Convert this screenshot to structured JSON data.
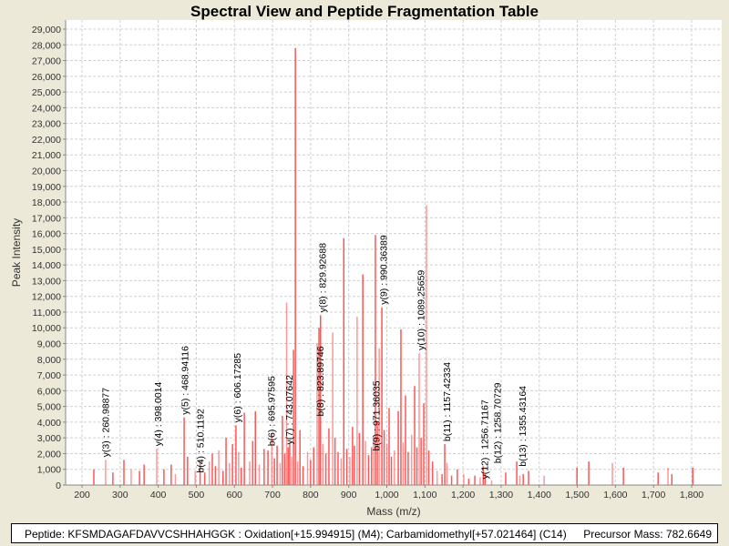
{
  "chart_data": {
    "type": "bar",
    "title": "Spectral View and Peptide Fragmentation Table",
    "xlabel": "Mass (m/z)",
    "ylabel": "Peak Intensity",
    "xlim": [
      150,
      1880
    ],
    "ylim": [
      0,
      29500
    ],
    "xticks": [
      200,
      300,
      400,
      500,
      600,
      700,
      800,
      900,
      1000,
      1100,
      1200,
      1300,
      1400,
      1500,
      1600,
      1700,
      1800
    ],
    "xtick_labels": [
      "200",
      "300",
      "400",
      "500",
      "600",
      "700",
      "800",
      "900",
      "1,000",
      "1,100",
      "1,200",
      "1,300",
      "1,400",
      "1,500",
      "1,600",
      "1,700",
      "1,800"
    ],
    "yticks": [
      0,
      1000,
      2000,
      3000,
      4000,
      5000,
      6000,
      7000,
      8000,
      9000,
      10000,
      11000,
      12000,
      13000,
      14000,
      15000,
      16000,
      17000,
      18000,
      19000,
      20000,
      21000,
      22000,
      23000,
      24000,
      25000,
      26000,
      27000,
      28000,
      29000
    ],
    "ytick_labels": [
      "0",
      "1,000",
      "2,000",
      "3,000",
      "4,000",
      "5,000",
      "6,000",
      "7,000",
      "8,000",
      "9,000",
      "10,000",
      "11,000",
      "12,000",
      "13,000",
      "14,000",
      "15,000",
      "16,000",
      "17,000",
      "18,000",
      "19,000",
      "20,000",
      "21,000",
      "22,000",
      "23,000",
      "24,000",
      "25,000",
      "26,000",
      "27,000",
      "28,000",
      "29,000"
    ],
    "grid": true,
    "peaks": [
      [
        231,
        1000
      ],
      [
        262,
        1600
      ],
      [
        281,
        800
      ],
      [
        310,
        1600
      ],
      [
        329,
        1000
      ],
      [
        351,
        900
      ],
      [
        363,
        1300
      ],
      [
        396,
        2300
      ],
      [
        415,
        1000
      ],
      [
        434,
        1300
      ],
      [
        445,
        700
      ],
      [
        468,
        4300
      ],
      [
        477,
        1800
      ],
      [
        497,
        900
      ],
      [
        510,
        1600
      ],
      [
        522,
        800
      ],
      [
        534,
        1500
      ],
      [
        542,
        2000
      ],
      [
        550,
        1200
      ],
      [
        559,
        2200
      ],
      [
        570,
        900
      ],
      [
        578,
        3000
      ],
      [
        587,
        1400
      ],
      [
        595,
        2600
      ],
      [
        604,
        3800
      ],
      [
        611,
        2100
      ],
      [
        618,
        1100
      ],
      [
        626,
        4600
      ],
      [
        640,
        1500
      ],
      [
        648,
        2800
      ],
      [
        655,
        4700
      ],
      [
        665,
        1300
      ],
      [
        678,
        2300
      ],
      [
        688,
        2200
      ],
      [
        698,
        3300
      ],
      [
        705,
        1700
      ],
      [
        712,
        2500
      ],
      [
        720,
        1400
      ],
      [
        726,
        4400
      ],
      [
        732,
        2000
      ],
      [
        737,
        11600
      ],
      [
        741,
        2400
      ],
      [
        745,
        2700
      ],
      [
        750,
        1800
      ],
      [
        755,
        8600
      ],
      [
        760,
        27800
      ],
      [
        766,
        1500
      ],
      [
        772,
        3500
      ],
      [
        780,
        1200
      ],
      [
        792,
        2100
      ],
      [
        800,
        1600
      ],
      [
        808,
        2400
      ],
      [
        817,
        9000
      ],
      [
        822,
        10000
      ],
      [
        826,
        10800
      ],
      [
        832,
        2600
      ],
      [
        840,
        2000
      ],
      [
        848,
        3600
      ],
      [
        858,
        9700
      ],
      [
        864,
        3000
      ],
      [
        872,
        2100
      ],
      [
        880,
        1700
      ],
      [
        887,
        15700
      ],
      [
        895,
        2300
      ],
      [
        903,
        1800
      ],
      [
        910,
        3700
      ],
      [
        915,
        2500
      ],
      [
        922,
        10700
      ],
      [
        928,
        3300
      ],
      [
        937,
        13400
      ],
      [
        944,
        2800
      ],
      [
        952,
        1900
      ],
      [
        960,
        2400
      ],
      [
        965,
        3100
      ],
      [
        970,
        15900
      ],
      [
        975,
        4000
      ],
      [
        980,
        8700
      ],
      [
        987,
        11300
      ],
      [
        993,
        3500
      ],
      [
        1000,
        2600
      ],
      [
        1006,
        4900
      ],
      [
        1012,
        1800
      ],
      [
        1020,
        2200
      ],
      [
        1030,
        4700
      ],
      [
        1037,
        9900
      ],
      [
        1043,
        2700
      ],
      [
        1049,
        5700
      ],
      [
        1056,
        2100
      ],
      [
        1065,
        3200
      ],
      [
        1073,
        6300
      ],
      [
        1079,
        2400
      ],
      [
        1085,
        8400
      ],
      [
        1090,
        3000
      ],
      [
        1097,
        5200
      ],
      [
        1104,
        17800
      ],
      [
        1110,
        2200
      ],
      [
        1120,
        1500
      ],
      [
        1132,
        900
      ],
      [
        1145,
        700
      ],
      [
        1152,
        2600
      ],
      [
        1158,
        1400
      ],
      [
        1170,
        600
      ],
      [
        1185,
        1000
      ],
      [
        1202,
        700
      ],
      [
        1215,
        400
      ],
      [
        1231,
        600
      ],
      [
        1245,
        500
      ],
      [
        1253,
        1200
      ],
      [
        1258,
        700
      ],
      [
        1275,
        300
      ],
      [
        1312,
        800
      ],
      [
        1341,
        1500
      ],
      [
        1349,
        600
      ],
      [
        1358,
        700
      ],
      [
        1372,
        900
      ],
      [
        1413,
        600
      ],
      [
        1499,
        1100
      ],
      [
        1530,
        1500
      ],
      [
        1592,
        1400
      ],
      [
        1621,
        1100
      ],
      [
        1712,
        800
      ],
      [
        1738,
        1100
      ],
      [
        1748,
        700
      ],
      [
        1803,
        1100
      ]
    ],
    "annotations": [
      {
        "label": "y(3) : 260.98877",
        "mz": 261,
        "intensity": 1600
      },
      {
        "label": "y(4) : 398.0014",
        "mz": 398,
        "intensity": 2300
      },
      {
        "label": "y(5) : 468.94116",
        "mz": 469,
        "intensity": 4300
      },
      {
        "label": "b(4) : 510.1192",
        "mz": 510,
        "intensity": 600
      },
      {
        "label": "y(6) : 606.17285",
        "mz": 606,
        "intensity": 3800
      },
      {
        "label": "b(6) : 695.97595",
        "mz": 696,
        "intensity": 2300
      },
      {
        "label": "y(7) : 743.07642",
        "mz": 743,
        "intensity": 2400
      },
      {
        "label": "b(8) : 823.89746",
        "mz": 824,
        "intensity": 4200
      },
      {
        "label": "y(8) : 829.92688",
        "mz": 830,
        "intensity": 10800
      },
      {
        "label": "b(9) : 971.36035",
        "mz": 971,
        "intensity": 2000
      },
      {
        "label": "y(9) : 990.36389",
        "mz": 990,
        "intensity": 11300
      },
      {
        "label": "y(10) : 1089.25659",
        "mz": 1089,
        "intensity": 8400
      },
      {
        "label": "b(11) : 1157.42334",
        "mz": 1157,
        "intensity": 2600
      },
      {
        "label": "y(12) : 1256.71167",
        "mz": 1256,
        "intensity": 200
      },
      {
        "label": "b(12) : 1258.70729",
        "mz": 1258,
        "intensity": 1200
      },
      {
        "label": "b(13) : 1355.43164",
        "mz": 1355,
        "intensity": 1000
      }
    ],
    "bar_color": "#FF4444"
  },
  "info": {
    "peptide": "Peptide: KFSMDAGAFDAVVCSHHAHGGK : Oxidation[+15.994915] (M4); Carbamidomethyl[+57.021464] (C14)",
    "precursor": "Precursor Mass: 782.6649"
  }
}
